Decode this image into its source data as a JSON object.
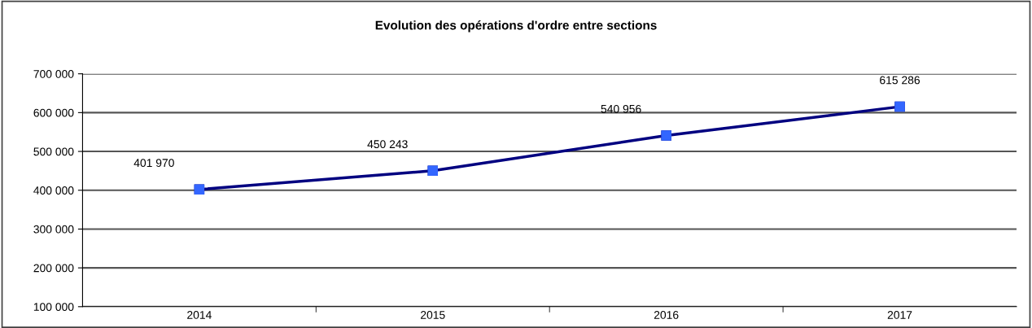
{
  "chart_data": {
    "type": "line",
    "title": "Evolution des opérations d'ordre entre sections",
    "categories": [
      "2014",
      "2015",
      "2016",
      "2017"
    ],
    "series": [
      {
        "color": "#000080",
        "colors": [
          "#3366ff",
          "#3366ff",
          "#3366ff",
          "#3366ff"
        ],
        "values": [
          401970,
          450243,
          540956,
          615286
        ],
        "value_labels": [
          "401 970",
          "450 243",
          "540 956",
          "615 286"
        ]
      }
    ],
    "ylim": [
      100000,
      700000
    ],
    "yticks": [
      {
        "value": 100000,
        "label": "100 000"
      },
      {
        "value": 200000,
        "label": "200 000"
      },
      {
        "value": 300000,
        "label": "300 000"
      },
      {
        "value": 400000,
        "label": "400 000"
      },
      {
        "value": 500000,
        "label": "500 000"
      },
      {
        "value": 600000,
        "label": "600 000"
      },
      {
        "value": 700000,
        "label": "700 000"
      }
    ],
    "grid": "y",
    "marker": "square",
    "line_style": "solid",
    "legend": false
  }
}
